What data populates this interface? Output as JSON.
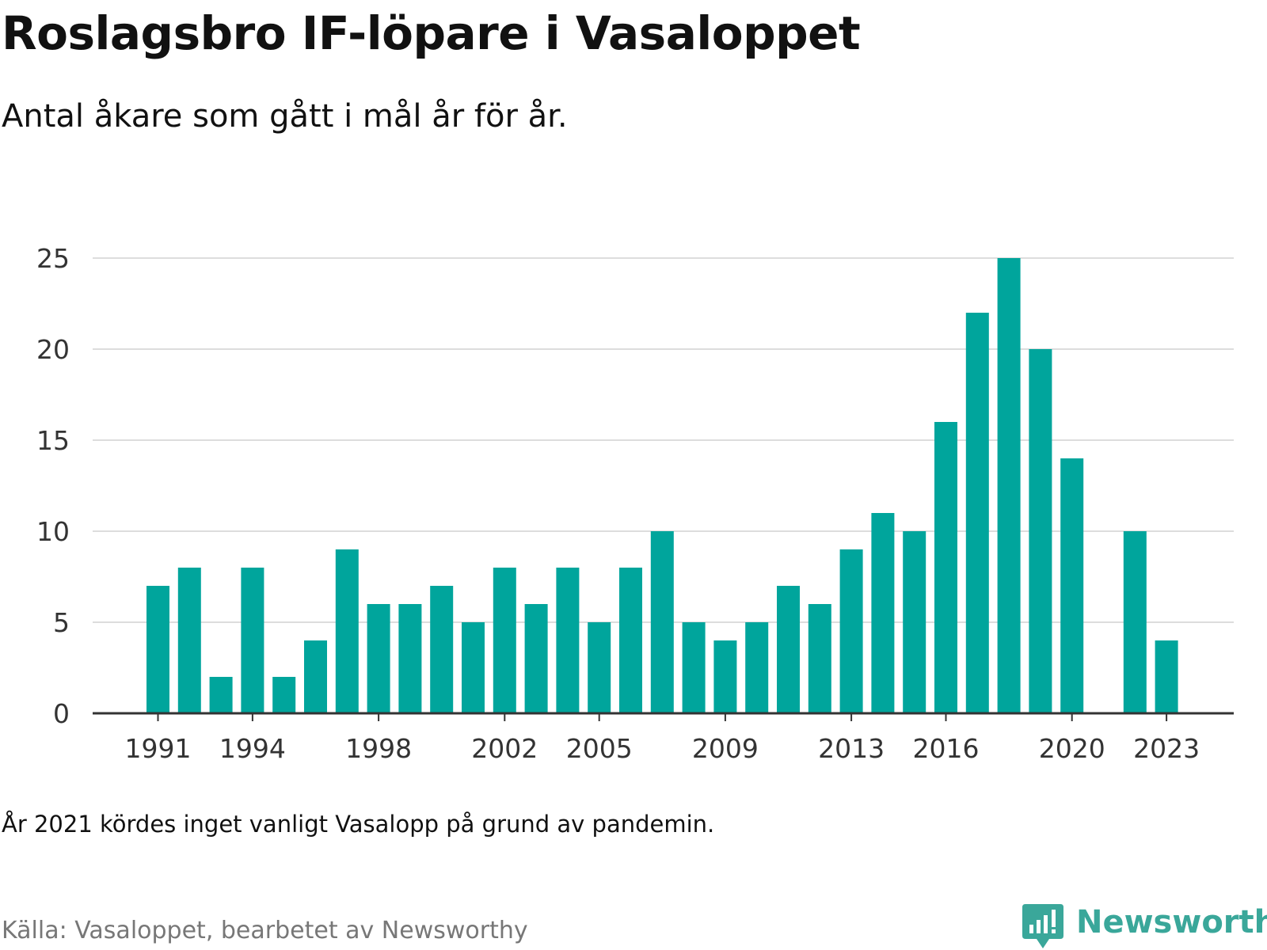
{
  "title": "Roslagsbro IF-löpare i Vasaloppet",
  "subtitle": "Antal åkare som gått i mål år för år.",
  "note": "År 2021 kördes inget vanligt Vasalopp på grund av pandemin.",
  "source": "Källa: Vasaloppet, bearbetet av Newsworthy",
  "logo": {
    "text": "Newsworthy",
    "icon": "newsworthy-chart-bubble-icon"
  },
  "colors": {
    "bar": "#00a59c",
    "grid": "#dddddd",
    "axis": "#333333",
    "logo": "#3aa79a"
  },
  "chart_data": {
    "type": "bar",
    "title": "Roslagsbro IF-löpare i Vasaloppet",
    "subtitle": "Antal åkare som gått i mål år för år.",
    "x": [
      1991,
      1992,
      1993,
      1994,
      1995,
      1996,
      1997,
      1998,
      1999,
      2000,
      2001,
      2002,
      2003,
      2004,
      2005,
      2006,
      2007,
      2008,
      2009,
      2010,
      2011,
      2012,
      2013,
      2014,
      2015,
      2016,
      2017,
      2018,
      2019,
      2020,
      2021,
      2022,
      2023
    ],
    "values": [
      7,
      8,
      2,
      8,
      2,
      4,
      9,
      6,
      6,
      7,
      5,
      8,
      6,
      8,
      5,
      8,
      10,
      5,
      4,
      5,
      7,
      6,
      9,
      11,
      10,
      16,
      22,
      25,
      20,
      14,
      null,
      10,
      4
    ],
    "x_tick_labels": [
      "1991",
      "1994",
      "1998",
      "2002",
      "2005",
      "2009",
      "2013",
      "2016",
      "2020",
      "2023"
    ],
    "y_ticks": [
      0,
      5,
      10,
      15,
      20,
      25
    ],
    "ylim": [
      0,
      25
    ],
    "xlabel": "",
    "ylabel": "",
    "grid": true,
    "legend": "none"
  }
}
